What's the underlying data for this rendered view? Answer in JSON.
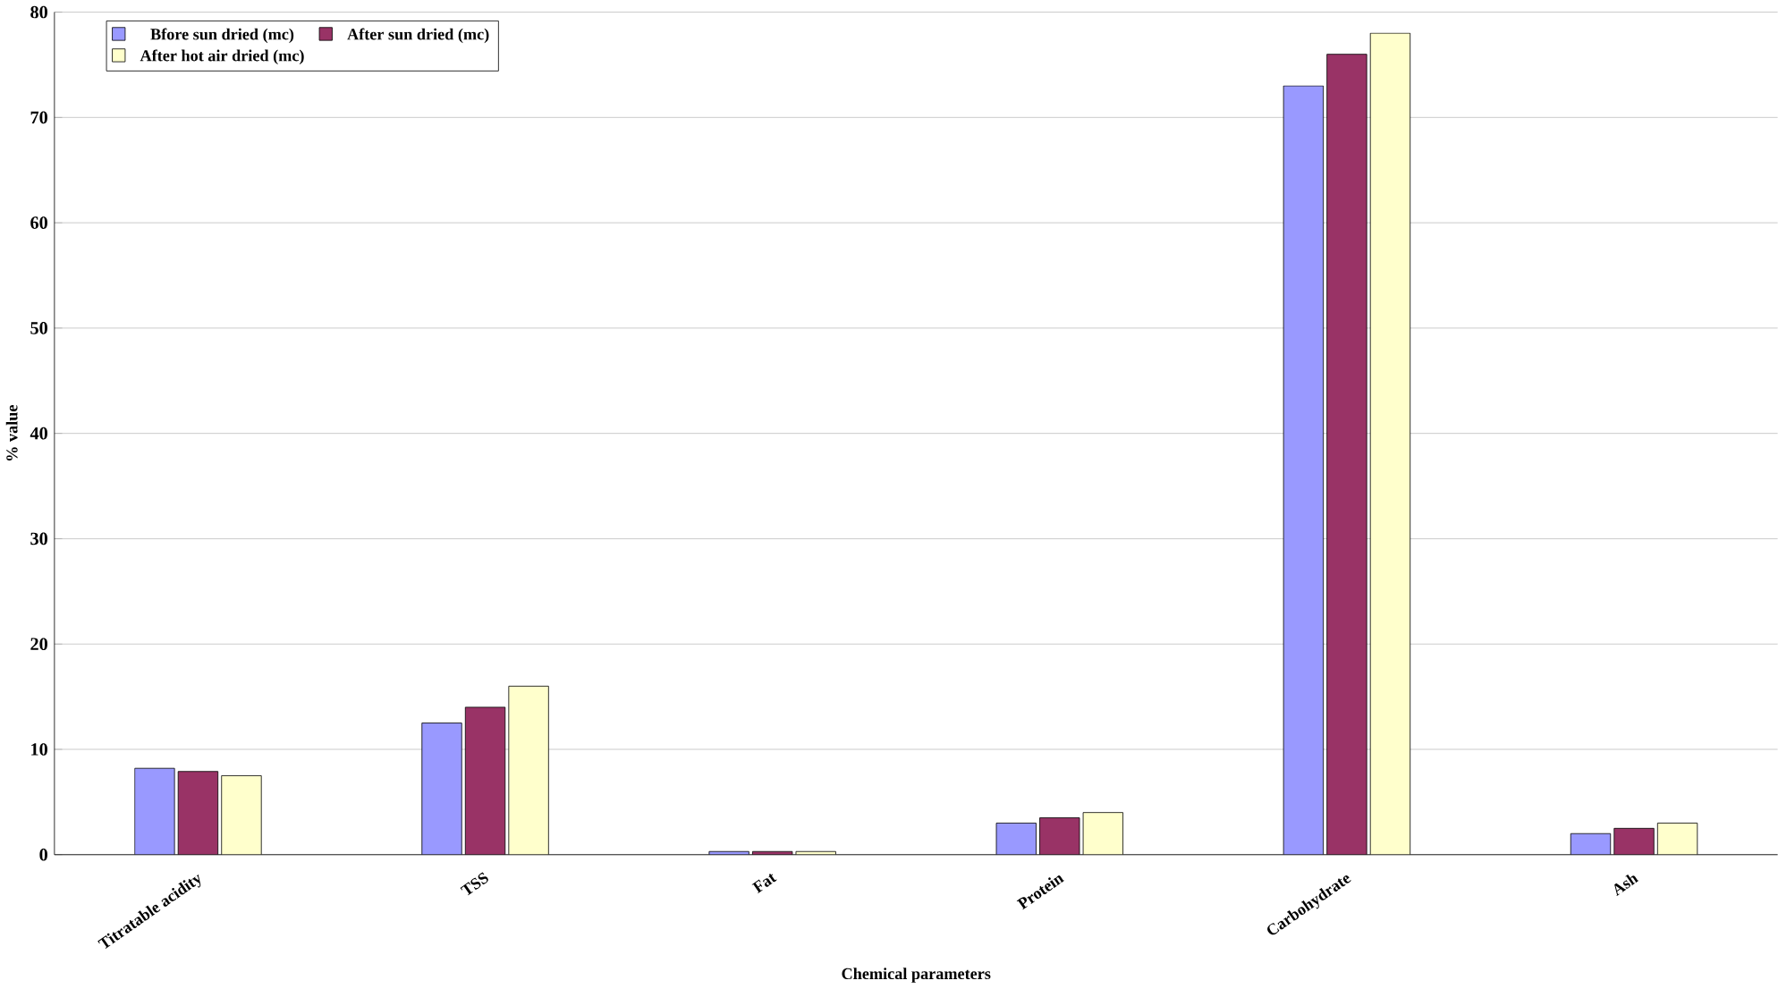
{
  "chart_data": {
    "type": "bar",
    "xlabel": "Chemical parameters",
    "ylabel": "% value",
    "categories": [
      "Titratable acidity",
      "TSS",
      "Fat",
      "Protein",
      "Carbohydrate",
      "Ash"
    ],
    "series": [
      {
        "name": "Bfore sun dried (mc)",
        "color": "#9999ff",
        "values": [
          8.2,
          12.5,
          0.3,
          3,
          73,
          2
        ]
      },
      {
        "name": "After sun dried (mc)",
        "color": "#993366",
        "values": [
          7.9,
          14,
          0.3,
          3.5,
          76,
          2.5
        ]
      },
      {
        "name": "After hot air dried (mc)",
        "color": "#ffffcc",
        "values": [
          7.5,
          16,
          0.3,
          4,
          78,
          3
        ]
      }
    ],
    "ylim": [
      0,
      80
    ],
    "yticks": [
      0,
      10,
      20,
      30,
      40,
      50,
      60,
      70,
      80
    ],
    "grid": "y",
    "legend": "top left"
  }
}
